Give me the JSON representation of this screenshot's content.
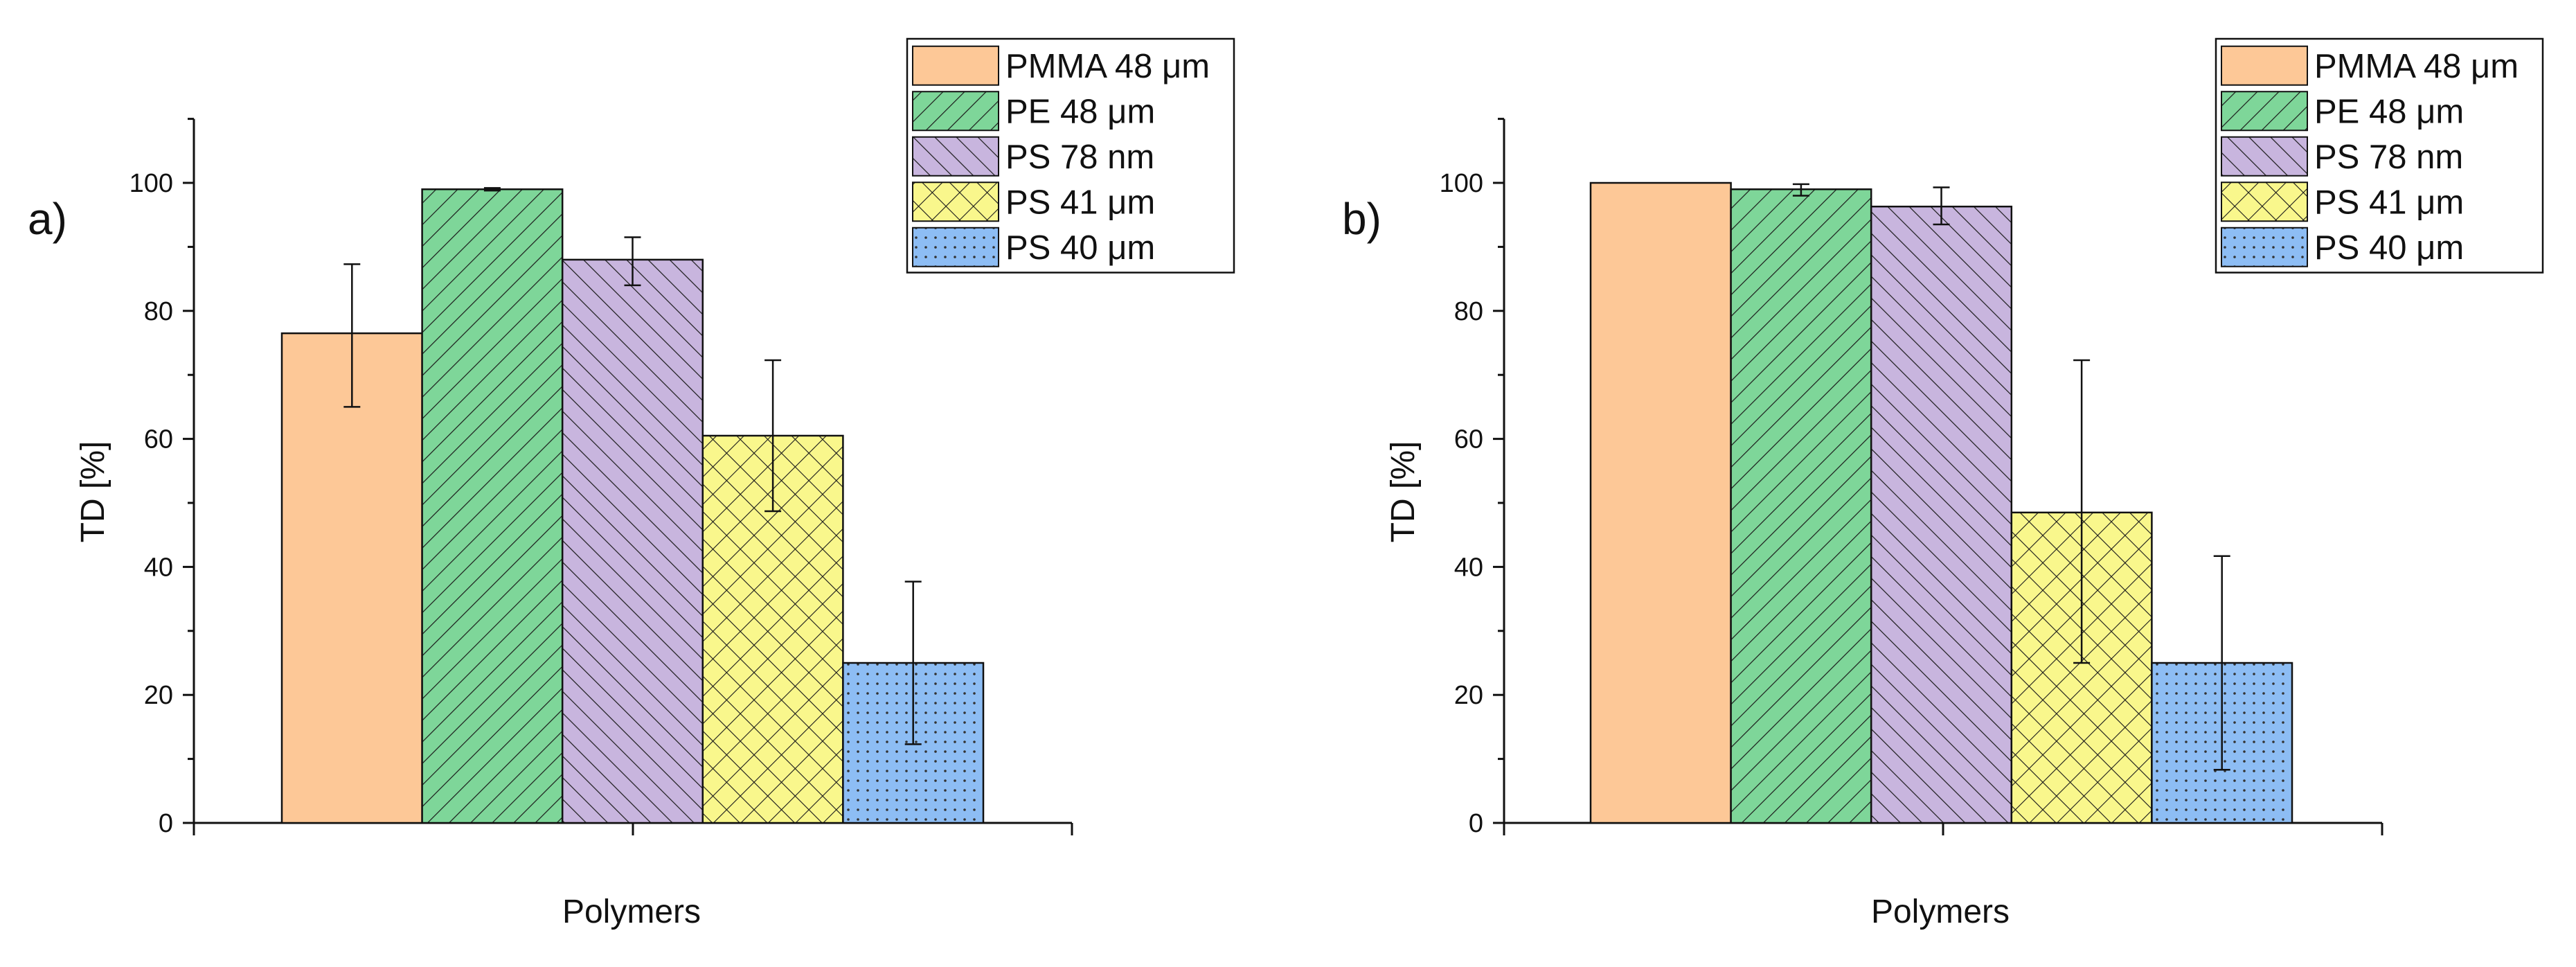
{
  "chart_data": [
    {
      "panel_label": "a)",
      "type": "bar",
      "xlabel": "Polymers",
      "ylabel": "TD [%]",
      "ylim": [
        0,
        110
      ],
      "yticks": [
        0,
        20,
        40,
        60,
        80,
        100
      ],
      "legend_position": "top-right",
      "series": [
        {
          "name": "PMMA 48 μm",
          "value": 76.5,
          "error": [
            65.0,
            87.3
          ]
        },
        {
          "name": "PE 48 μm",
          "value": 99.0,
          "error": [
            98.8,
            99.2
          ]
        },
        {
          "name": "PS 78 nm",
          "value": 88.0,
          "error": [
            84.0,
            91.5
          ]
        },
        {
          "name": "PS 41 μm",
          "value": 60.5,
          "error": [
            48.7,
            72.3
          ]
        },
        {
          "name": "PS 40 μm",
          "value": 25.0,
          "error": [
            12.3,
            37.7
          ]
        }
      ]
    },
    {
      "panel_label": "b)",
      "type": "bar",
      "xlabel": "Polymers",
      "ylabel": "TD [%]",
      "ylim": [
        0,
        110
      ],
      "yticks": [
        0,
        20,
        40,
        60,
        80,
        100
      ],
      "legend_position": "top-right",
      "series": [
        {
          "name": "PMMA 48 μm",
          "value": 100.0,
          "error": null
        },
        {
          "name": "PE 48 μm",
          "value": 99.0,
          "error": [
            98.0,
            99.8
          ]
        },
        {
          "name": "PS 78 nm",
          "value": 96.3,
          "error": [
            93.5,
            99.3
          ]
        },
        {
          "name": "PS 41 μm",
          "value": 48.5,
          "error": [
            25.0,
            72.3
          ]
        },
        {
          "name": "PS 40 μm",
          "value": 25.0,
          "error": [
            8.3,
            41.7
          ]
        }
      ]
    }
  ],
  "style": {
    "series_colors": [
      "#FDC897",
      "#7ED699",
      "#C8B5DE",
      "#F9F78C",
      "#8DBDF4"
    ],
    "series_patterns": [
      "solid",
      "hatch-forward",
      "hatch-back",
      "crosshatch",
      "dots"
    ],
    "axis_color": "#111111"
  }
}
